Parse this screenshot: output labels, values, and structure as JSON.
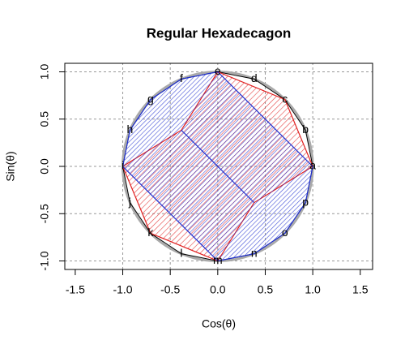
{
  "chart_data": {
    "type": "polygon",
    "title": "Regular Hexadecagon",
    "x_label": "Cos(θ)",
    "y_label": "Sin(θ)",
    "xlim": [
      -1.61,
      1.63
    ],
    "ylim": [
      -1.09,
      1.09
    ],
    "xticks": [
      -1.5,
      {
        "value": -1,
        "label": "-1.0"
      },
      -0.5,
      {
        "value": 0,
        "label": "0.0"
      },
      0.5,
      {
        "value": 1,
        "label": "1.0"
      },
      1.5
    ],
    "yticks": [
      {
        "value": -1,
        "label": "-1.0"
      },
      -0.5,
      {
        "value": 0,
        "label": "0.0"
      },
      0.5,
      {
        "value": 1,
        "label": "1.0"
      }
    ],
    "grid": true,
    "circle_radius": 1,
    "vertices": {
      "labels": [
        "a",
        "b",
        "c",
        "d",
        "e",
        "f",
        "g",
        "h",
        "i",
        "j",
        "k",
        "l",
        "m",
        "n",
        "o",
        "p"
      ],
      "x": [
        1,
        0.924,
        0.707,
        0.383,
        0,
        -0.383,
        -0.707,
        -0.924,
        -1,
        -0.924,
        -0.707,
        -0.383,
        0,
        0.383,
        0.707,
        0.924
      ],
      "y": [
        0,
        0.383,
        0.707,
        0.924,
        1,
        0.924,
        0.707,
        0.383,
        0,
        -0.383,
        -0.707,
        -0.924,
        -1,
        -0.924,
        -0.707,
        -0.383
      ]
    },
    "polygons": [
      {
        "color": "#e02020",
        "x": [
          1,
          0.707,
          0,
          -0.383,
          -1,
          -0.707,
          0,
          0.383
        ],
        "y": [
          0,
          0.707,
          1,
          0.383,
          0,
          -0.707,
          -1,
          -0.383
        ]
      },
      {
        "color": "#2030d0",
        "x": [
          0,
          -0.383,
          -0.707,
          -0.924,
          -1,
          0,
          0.383,
          0.707,
          0.924,
          1
        ],
        "y": [
          1,
          0.924,
          0.707,
          0.383,
          0,
          -1,
          -0.924,
          -0.707,
          -0.383,
          0
        ]
      }
    ],
    "segments": [
      {
        "color": "#2030d0",
        "x": [
          -0.383,
          0.383
        ],
        "y": [
          0.383,
          -0.383
        ]
      }
    ]
  }
}
